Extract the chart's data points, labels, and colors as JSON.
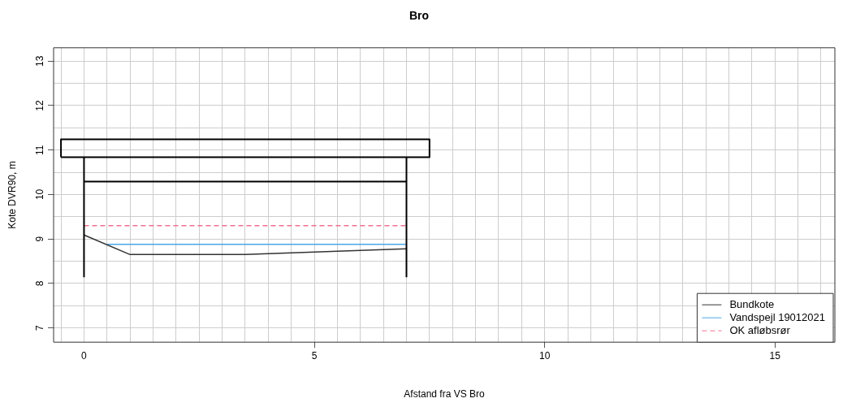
{
  "chart_data": {
    "type": "line",
    "title": "Bro",
    "xlabel": "Afstand fra VS Bro",
    "ylabel": "Kote DVR90, m",
    "xlim": [
      -0.66,
      16.3
    ],
    "ylim": [
      6.68,
      13.3
    ],
    "xticks": [
      {
        "value": -0.5,
        "label": null
      },
      0,
      {
        "value": 0.5,
        "label": null
      },
      {
        "value": 1,
        "label": null
      },
      {
        "value": 1.5,
        "label": null
      },
      {
        "value": 2,
        "label": null
      },
      {
        "value": 2.5,
        "label": null
      },
      {
        "value": 3,
        "label": null
      },
      {
        "value": 3.5,
        "label": null
      },
      {
        "value": 4,
        "label": null
      },
      {
        "value": 4.5,
        "label": null
      },
      5,
      {
        "value": 5.5,
        "label": null
      },
      {
        "value": 6,
        "label": null
      },
      {
        "value": 6.5,
        "label": null
      },
      {
        "value": 7,
        "label": null
      },
      {
        "value": 7.5,
        "label": null
      },
      {
        "value": 8,
        "label": null
      },
      {
        "value": 8.5,
        "label": null
      },
      {
        "value": 9,
        "label": null
      },
      {
        "value": 9.5,
        "label": null
      },
      10,
      {
        "value": 10.5,
        "label": null
      },
      {
        "value": 11,
        "label": null
      },
      {
        "value": 11.5,
        "label": null
      },
      {
        "value": 12,
        "label": null
      },
      {
        "value": 12.5,
        "label": null
      },
      {
        "value": 13,
        "label": null
      },
      {
        "value": 13.5,
        "label": null
      },
      {
        "value": 14,
        "label": null
      },
      {
        "value": 14.5,
        "label": null
      },
      15,
      {
        "value": 15.5,
        "label": null
      },
      {
        "value": 16,
        "label": null
      }
    ],
    "yticks": [
      7,
      {
        "value": 7.5,
        "label": null
      },
      8,
      {
        "value": 8.5,
        "label": null
      },
      9,
      {
        "value": 9.5,
        "label": null
      },
      10,
      {
        "value": 10.5,
        "label": null
      },
      11,
      {
        "value": 11.5,
        "label": null
      },
      12,
      {
        "value": 12.5,
        "label": null
      },
      13
    ],
    "grid": true,
    "legend": "bottom right",
    "marker": "none",
    "series": [
      {
        "type": "line",
        "color": "#000000",
        "x": [
          0,
          0,
          null,
          7,
          7,
          null,
          0,
          7,
          null,
          -0.5,
          -0.5,
          7.5,
          7.5,
          null,
          -0.5,
          7.5
        ],
        "values": [
          8.14,
          10.84,
          null,
          8.14,
          10.84,
          null,
          10.29,
          10.29,
          null,
          10.84,
          11.24,
          11.24,
          10.84,
          null,
          10.84,
          10.84
        ]
      },
      {
        "type": "line",
        "name": "Bundkote",
        "color": "#333333",
        "x": [
          0,
          1,
          3.5,
          7
        ],
        "values": [
          9.09,
          8.65,
          8.65,
          8.78
        ]
      },
      {
        "type": "line",
        "name": "Vandspejl 19012021",
        "color": "#4aa8e8",
        "x": [
          0.5,
          7
        ],
        "values": [
          8.88,
          8.88
        ]
      },
      {
        "type": "line",
        "name": "OK afløbsrør",
        "color": "#f07090",
        "line_style": "dashed",
        "x": [
          0,
          7
        ],
        "values": [
          9.3,
          9.3
        ]
      }
    ]
  }
}
